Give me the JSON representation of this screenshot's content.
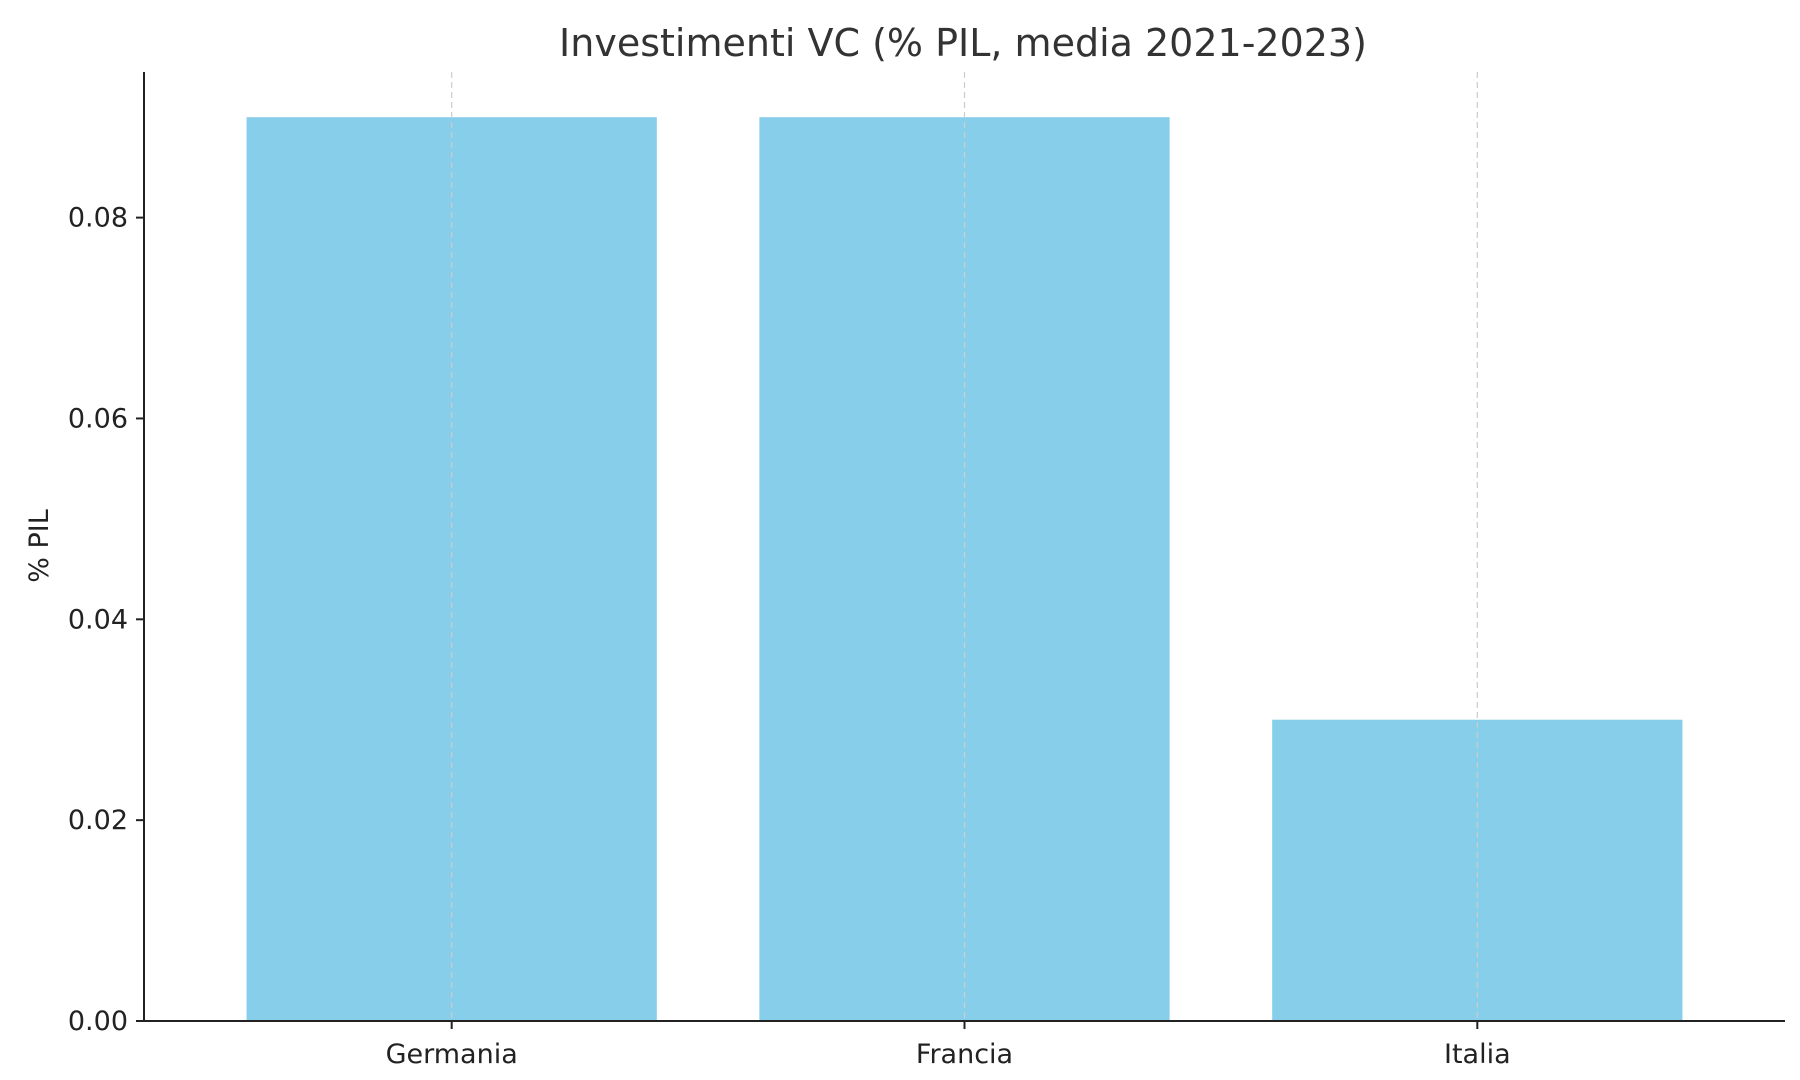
{
  "chart_data": {
    "type": "bar",
    "title": "Investimenti VC (% PIL, media 2021-2023)",
    "xlabel": "",
    "ylabel": "% PIL",
    "categories": [
      "Germania",
      "Francia",
      "Italia"
    ],
    "values": [
      0.09,
      0.09,
      0.03
    ],
    "ylim": [
      0,
      0.0945
    ],
    "yticks": [
      "0.00",
      "0.02",
      "0.04",
      "0.06",
      "0.08"
    ],
    "grid": "vertical dashed",
    "bar_color": "#87CEEB",
    "grid_color": "#cccccc",
    "axis_color": "#222222",
    "title_color": "#333333"
  }
}
